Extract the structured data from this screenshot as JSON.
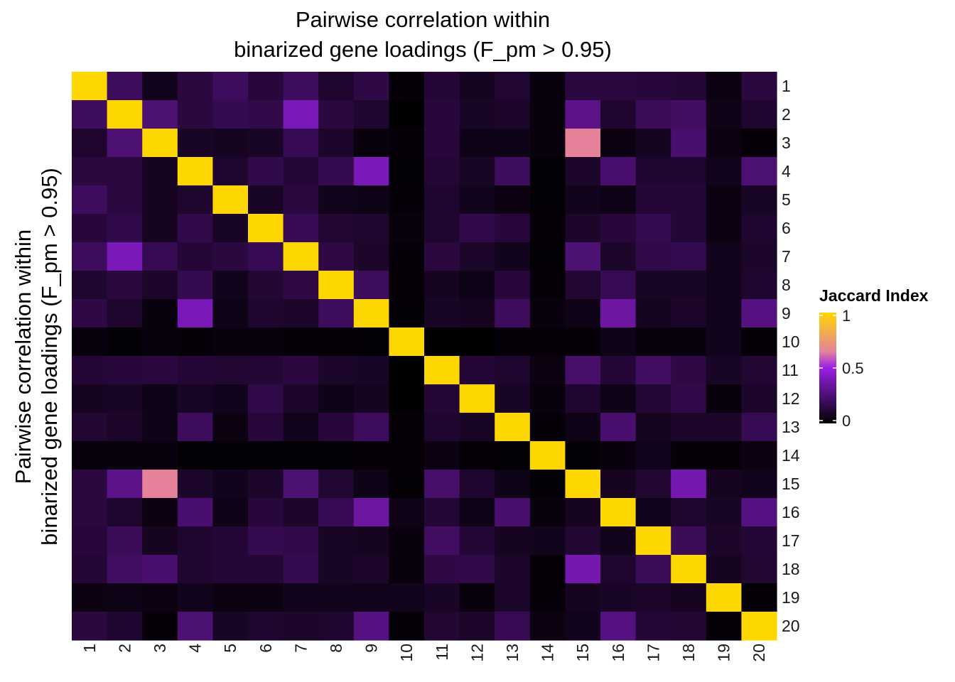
{
  "chart_data": {
    "type": "heatmap",
    "title": [
      "Pairwise correlation within",
      "binarized gene loadings (F_pm > 0.95)"
    ],
    "ylabel": [
      "Pairwise correlation within",
      "binarized gene loadings (F_pm > 0.95)"
    ],
    "xlabel": "",
    "x_categories": [
      "1",
      "2",
      "3",
      "4",
      "5",
      "6",
      "7",
      "8",
      "9",
      "10",
      "11",
      "12",
      "13",
      "14",
      "15",
      "16",
      "17",
      "18",
      "19",
      "20"
    ],
    "y_categories": [
      "1",
      "2",
      "3",
      "4",
      "5",
      "6",
      "7",
      "8",
      "9",
      "10",
      "11",
      "12",
      "13",
      "14",
      "15",
      "16",
      "17",
      "18",
      "19",
      "20"
    ],
    "values": [
      [
        1.0,
        0.2,
        0.06,
        0.14,
        0.2,
        0.13,
        0.2,
        0.1,
        0.15,
        0.02,
        0.12,
        0.07,
        0.11,
        0.03,
        0.14,
        0.14,
        0.13,
        0.12,
        0.04,
        0.14
      ],
      [
        0.2,
        1.0,
        0.25,
        0.14,
        0.17,
        0.16,
        0.4,
        0.14,
        0.1,
        0.0,
        0.13,
        0.08,
        0.09,
        0.03,
        0.3,
        0.1,
        0.19,
        0.21,
        0.05,
        0.1
      ],
      [
        0.1,
        0.25,
        1.0,
        0.08,
        0.07,
        0.08,
        0.18,
        0.09,
        0.03,
        0.02,
        0.13,
        0.05,
        0.05,
        0.03,
        0.65,
        0.04,
        0.07,
        0.24,
        0.04,
        0.02
      ],
      [
        0.14,
        0.14,
        0.07,
        1.0,
        0.1,
        0.16,
        0.12,
        0.17,
        0.4,
        0.01,
        0.12,
        0.08,
        0.2,
        0.01,
        0.09,
        0.24,
        0.1,
        0.1,
        0.06,
        0.25
      ],
      [
        0.2,
        0.14,
        0.07,
        0.1,
        1.0,
        0.08,
        0.14,
        0.06,
        0.05,
        0.02,
        0.1,
        0.06,
        0.04,
        0.01,
        0.06,
        0.05,
        0.12,
        0.12,
        0.04,
        0.08
      ],
      [
        0.13,
        0.16,
        0.07,
        0.16,
        0.08,
        1.0,
        0.18,
        0.11,
        0.1,
        0.03,
        0.1,
        0.16,
        0.13,
        0.02,
        0.09,
        0.13,
        0.17,
        0.12,
        0.04,
        0.1
      ],
      [
        0.2,
        0.4,
        0.18,
        0.12,
        0.14,
        0.18,
        1.0,
        0.15,
        0.09,
        0.02,
        0.14,
        0.09,
        0.06,
        0.01,
        0.25,
        0.09,
        0.16,
        0.17,
        0.06,
        0.09
      ],
      [
        0.1,
        0.14,
        0.09,
        0.17,
        0.06,
        0.11,
        0.15,
        1.0,
        0.2,
        0.02,
        0.07,
        0.05,
        0.13,
        0.02,
        0.11,
        0.18,
        0.08,
        0.08,
        0.06,
        0.1
      ],
      [
        0.15,
        0.1,
        0.03,
        0.4,
        0.05,
        0.1,
        0.09,
        0.2,
        1.0,
        0.01,
        0.08,
        0.07,
        0.2,
        0.03,
        0.05,
        0.35,
        0.07,
        0.09,
        0.06,
        0.28
      ],
      [
        0.03,
        0.01,
        0.03,
        0.02,
        0.03,
        0.03,
        0.02,
        0.02,
        0.01,
        1.0,
        0.0,
        0.0,
        0.02,
        0.02,
        0.02,
        0.05,
        0.03,
        0.03,
        0.06,
        0.02
      ],
      [
        0.12,
        0.13,
        0.14,
        0.12,
        0.11,
        0.12,
        0.14,
        0.09,
        0.08,
        0.0,
        1.0,
        0.12,
        0.1,
        0.04,
        0.23,
        0.12,
        0.21,
        0.15,
        0.08,
        0.11
      ],
      [
        0.07,
        0.08,
        0.05,
        0.08,
        0.06,
        0.16,
        0.09,
        0.05,
        0.07,
        0.0,
        0.12,
        1.0,
        0.08,
        0.03,
        0.1,
        0.05,
        0.12,
        0.16,
        0.03,
        0.09
      ],
      [
        0.11,
        0.09,
        0.05,
        0.2,
        0.04,
        0.13,
        0.06,
        0.13,
        0.2,
        0.02,
        0.1,
        0.08,
        1.0,
        0.02,
        0.05,
        0.24,
        0.07,
        0.09,
        0.09,
        0.18
      ],
      [
        0.03,
        0.03,
        0.03,
        0.01,
        0.01,
        0.01,
        0.01,
        0.01,
        0.02,
        0.02,
        0.04,
        0.02,
        0.01,
        1.0,
        0.01,
        0.03,
        0.06,
        0.02,
        0.02,
        0.04
      ],
      [
        0.14,
        0.3,
        0.65,
        0.09,
        0.06,
        0.09,
        0.25,
        0.11,
        0.05,
        0.01,
        0.23,
        0.1,
        0.05,
        0.01,
        1.0,
        0.07,
        0.11,
        0.38,
        0.07,
        0.06
      ],
      [
        0.14,
        0.1,
        0.04,
        0.24,
        0.05,
        0.13,
        0.09,
        0.18,
        0.35,
        0.05,
        0.12,
        0.05,
        0.24,
        0.03,
        0.07,
        1.0,
        0.06,
        0.1,
        0.08,
        0.28
      ],
      [
        0.13,
        0.19,
        0.07,
        0.1,
        0.12,
        0.17,
        0.16,
        0.08,
        0.07,
        0.03,
        0.21,
        0.12,
        0.07,
        0.06,
        0.11,
        0.06,
        1.0,
        0.19,
        0.09,
        0.12
      ],
      [
        0.12,
        0.21,
        0.24,
        0.1,
        0.12,
        0.12,
        0.17,
        0.08,
        0.09,
        0.03,
        0.15,
        0.16,
        0.09,
        0.02,
        0.38,
        0.1,
        0.19,
        1.0,
        0.07,
        0.11
      ],
      [
        0.04,
        0.05,
        0.04,
        0.06,
        0.04,
        0.04,
        0.06,
        0.06,
        0.06,
        0.06,
        0.08,
        0.03,
        0.09,
        0.02,
        0.07,
        0.08,
        0.09,
        0.07,
        1.0,
        0.02
      ],
      [
        0.14,
        0.1,
        0.02,
        0.25,
        0.08,
        0.1,
        0.09,
        0.1,
        0.28,
        0.02,
        0.11,
        0.09,
        0.18,
        0.04,
        0.06,
        0.28,
        0.12,
        0.11,
        0.02,
        1.0
      ]
    ],
    "color_scale": {
      "domain": [
        0,
        0.5,
        0.65,
        1
      ],
      "colors": [
        "#000000",
        "#9a1fe6",
        "#e5829a",
        "#ffd700"
      ]
    },
    "legend": {
      "title": "Jaccard Index",
      "ticks": [
        "1",
        "0.5",
        "0"
      ],
      "tick_values": [
        1,
        0.5,
        0
      ],
      "placement": "right"
    }
  }
}
